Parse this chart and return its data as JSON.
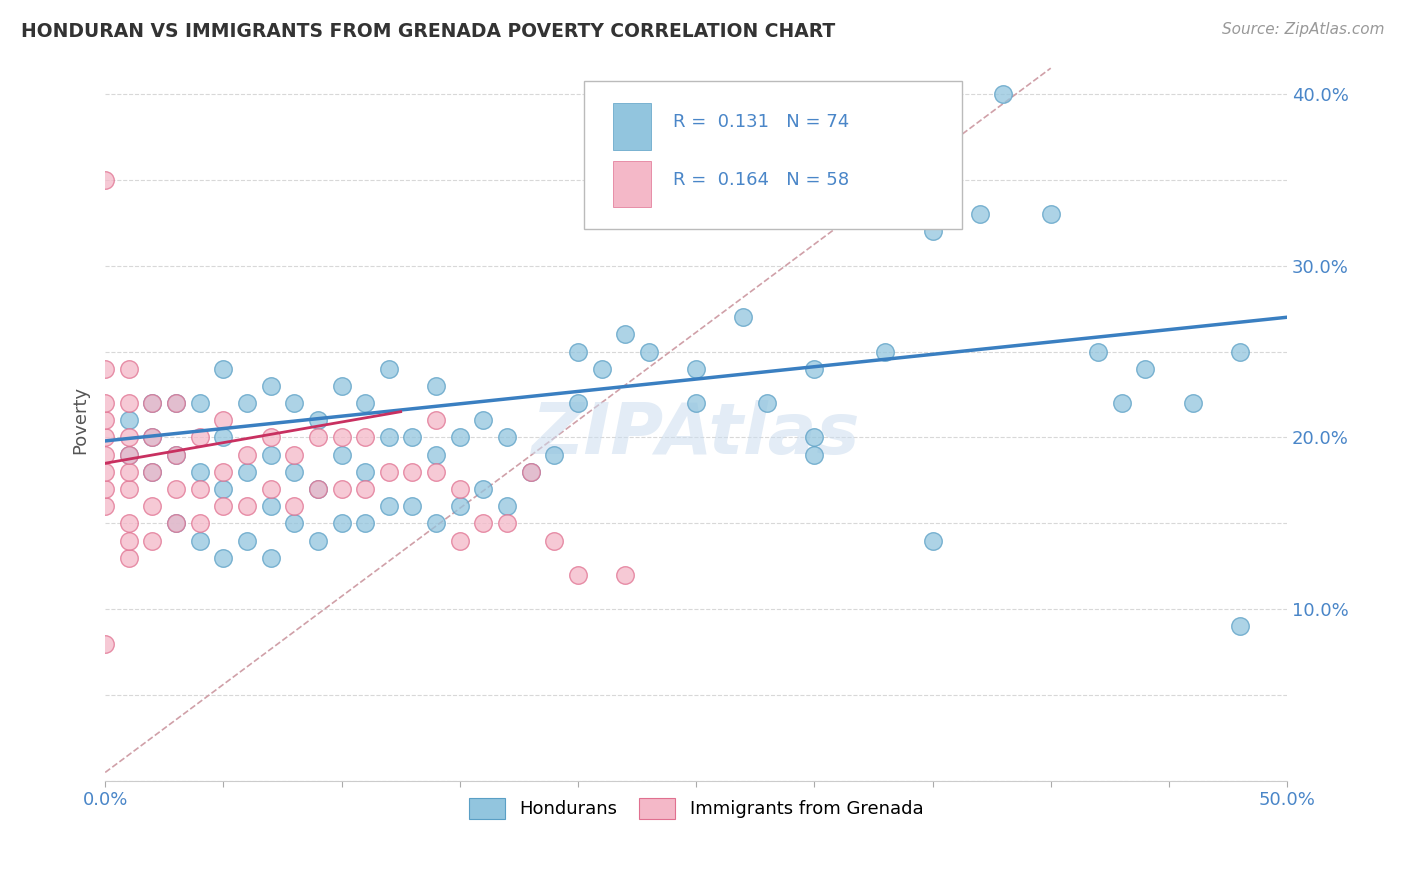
{
  "title": "HONDURAN VS IMMIGRANTS FROM GRENADA POVERTY CORRELATION CHART",
  "source": "Source: ZipAtlas.com",
  "ylabel": "Poverty",
  "xlim": [
    0.0,
    0.5
  ],
  "ylim": [
    0.0,
    0.42
  ],
  "legend1_R": "0.131",
  "legend1_N": "74",
  "legend2_R": "0.164",
  "legend2_N": "58",
  "blue_color": "#92c5de",
  "blue_edge_color": "#5a9fc5",
  "pink_color": "#f4b8c8",
  "pink_edge_color": "#e07090",
  "blue_line_color": "#3a7fc1",
  "pink_line_color": "#c83060",
  "dashed_line_color": "#d0a0a8",
  "grid_color": "#d8d8d8",
  "tick_label_color": "#4a86c8",
  "watermark_color": "#ccddef",
  "hon_x": [
    0.01,
    0.01,
    0.02,
    0.02,
    0.02,
    0.03,
    0.03,
    0.03,
    0.04,
    0.04,
    0.04,
    0.05,
    0.05,
    0.05,
    0.05,
    0.06,
    0.06,
    0.06,
    0.07,
    0.07,
    0.07,
    0.07,
    0.08,
    0.08,
    0.08,
    0.09,
    0.09,
    0.09,
    0.1,
    0.1,
    0.1,
    0.11,
    0.11,
    0.11,
    0.12,
    0.12,
    0.12,
    0.13,
    0.13,
    0.14,
    0.14,
    0.14,
    0.15,
    0.15,
    0.16,
    0.16,
    0.17,
    0.17,
    0.18,
    0.19,
    0.2,
    0.21,
    0.22,
    0.23,
    0.25,
    0.27,
    0.28,
    0.3,
    0.3,
    0.33,
    0.35,
    0.35,
    0.37,
    0.38,
    0.4,
    0.42,
    0.43,
    0.44,
    0.46,
    0.48,
    0.48,
    0.3,
    0.25,
    0.2
  ],
  "hon_y": [
    0.19,
    0.21,
    0.18,
    0.2,
    0.22,
    0.15,
    0.19,
    0.22,
    0.14,
    0.18,
    0.22,
    0.13,
    0.17,
    0.2,
    0.24,
    0.14,
    0.18,
    0.22,
    0.13,
    0.16,
    0.19,
    0.23,
    0.15,
    0.18,
    0.22,
    0.14,
    0.17,
    0.21,
    0.15,
    0.19,
    0.23,
    0.15,
    0.18,
    0.22,
    0.16,
    0.2,
    0.24,
    0.16,
    0.2,
    0.15,
    0.19,
    0.23,
    0.16,
    0.2,
    0.17,
    0.21,
    0.16,
    0.2,
    0.18,
    0.19,
    0.22,
    0.24,
    0.26,
    0.25,
    0.24,
    0.27,
    0.22,
    0.2,
    0.24,
    0.25,
    0.14,
    0.32,
    0.33,
    0.4,
    0.33,
    0.25,
    0.22,
    0.24,
    0.22,
    0.09,
    0.25,
    0.19,
    0.22,
    0.25
  ],
  "gren_x": [
    0.0,
    0.0,
    0.0,
    0.0,
    0.0,
    0.0,
    0.0,
    0.0,
    0.0,
    0.01,
    0.01,
    0.01,
    0.01,
    0.01,
    0.01,
    0.01,
    0.01,
    0.01,
    0.02,
    0.02,
    0.02,
    0.02,
    0.02,
    0.03,
    0.03,
    0.03,
    0.03,
    0.04,
    0.04,
    0.04,
    0.05,
    0.05,
    0.05,
    0.06,
    0.06,
    0.07,
    0.07,
    0.08,
    0.08,
    0.09,
    0.09,
    0.1,
    0.1,
    0.11,
    0.11,
    0.12,
    0.13,
    0.14,
    0.14,
    0.15,
    0.15,
    0.16,
    0.17,
    0.18,
    0.19,
    0.2,
    0.22,
    0.0
  ],
  "gren_y": [
    0.35,
    0.16,
    0.17,
    0.18,
    0.19,
    0.2,
    0.21,
    0.22,
    0.24,
    0.13,
    0.14,
    0.15,
    0.17,
    0.18,
    0.19,
    0.2,
    0.22,
    0.24,
    0.14,
    0.16,
    0.18,
    0.2,
    0.22,
    0.15,
    0.17,
    0.19,
    0.22,
    0.15,
    0.17,
    0.2,
    0.16,
    0.18,
    0.21,
    0.16,
    0.19,
    0.17,
    0.2,
    0.16,
    0.19,
    0.17,
    0.2,
    0.17,
    0.2,
    0.17,
    0.2,
    0.18,
    0.18,
    0.18,
    0.21,
    0.14,
    0.17,
    0.15,
    0.15,
    0.18,
    0.14,
    0.12,
    0.12,
    0.08
  ]
}
